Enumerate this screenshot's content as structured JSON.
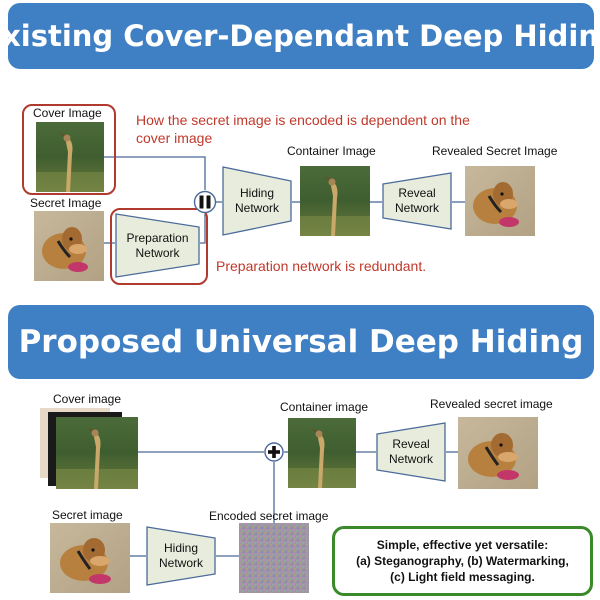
{
  "top": {
    "banner": "Existing Cover-Dependant Deep Hiding",
    "cover_label": "Cover Image",
    "secret_label": "Secret Image",
    "container_label": "Container Image",
    "revealed_label": "Revealed  Secret Image",
    "note_encoding": "How the secret image is encoded is dependent on the cover image",
    "note_redundant": "Preparation network is redundant.",
    "prep_net": "Preparation Network",
    "hiding_net": "Hiding Network",
    "reveal_net": "Reveal Network"
  },
  "bottom": {
    "banner": "Proposed Universal Deep Hiding",
    "cover_label": "Cover  image",
    "container_label": "Container image",
    "revealed_label": "Revealed  secret image",
    "secret_label": "Secret image",
    "encoded_label": "Encoded secret image",
    "hiding_net": "Hiding Network",
    "reveal_net": "Reveal Network",
    "summary_title": "Simple, effective yet versatile:",
    "summary_line1": "(a) Steganography, (b) Watermarking,",
    "summary_line2": "(c) Light field messaging."
  },
  "colors": {
    "banner": "#3f7fc4",
    "red_note": "#c0392b",
    "net_fill": "#e8ecdc",
    "net_stroke": "#4a6a9a",
    "summary_border": "#3b8a2a"
  },
  "icons": {
    "concat": "concatenation-icon",
    "add": "addition-icon",
    "bird": "bird-photo",
    "dog": "dog-photo"
  }
}
